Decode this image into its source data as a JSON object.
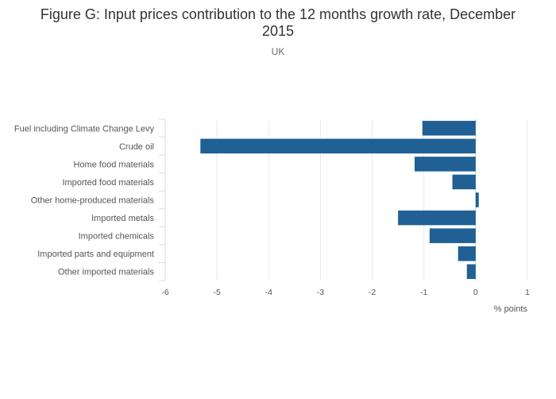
{
  "chart": {
    "title_line1": "Figure G: Input prices contribution to the 12 months growth rate, December",
    "title_line2": "2015",
    "subtitle": "UK"
  },
  "chart_data": {
    "type": "bar",
    "orientation": "horizontal",
    "title": "Figure G: Input prices contribution to the 12 months growth rate, December 2015",
    "subtitle": "UK",
    "xlabel": "% points",
    "ylabel": "",
    "xlim": [
      -6,
      1
    ],
    "xticks": [
      "-6",
      "-5",
      "-4",
      "-3",
      "-2",
      "-1",
      "0",
      "1"
    ],
    "grid": true,
    "bar_color": "#206095",
    "categories": [
      "Fuel including Climate Change Levy",
      "Crude oil",
      "Home food materials",
      "Imported food materials",
      "Other home-produced materials",
      "Imported metals",
      "Imported chemicals",
      "Imported parts and equipment",
      "Other imported materials"
    ],
    "values": [
      -1.03,
      -5.32,
      -1.18,
      -0.45,
      0.06,
      -1.5,
      -0.89,
      -0.34,
      -0.17
    ]
  }
}
